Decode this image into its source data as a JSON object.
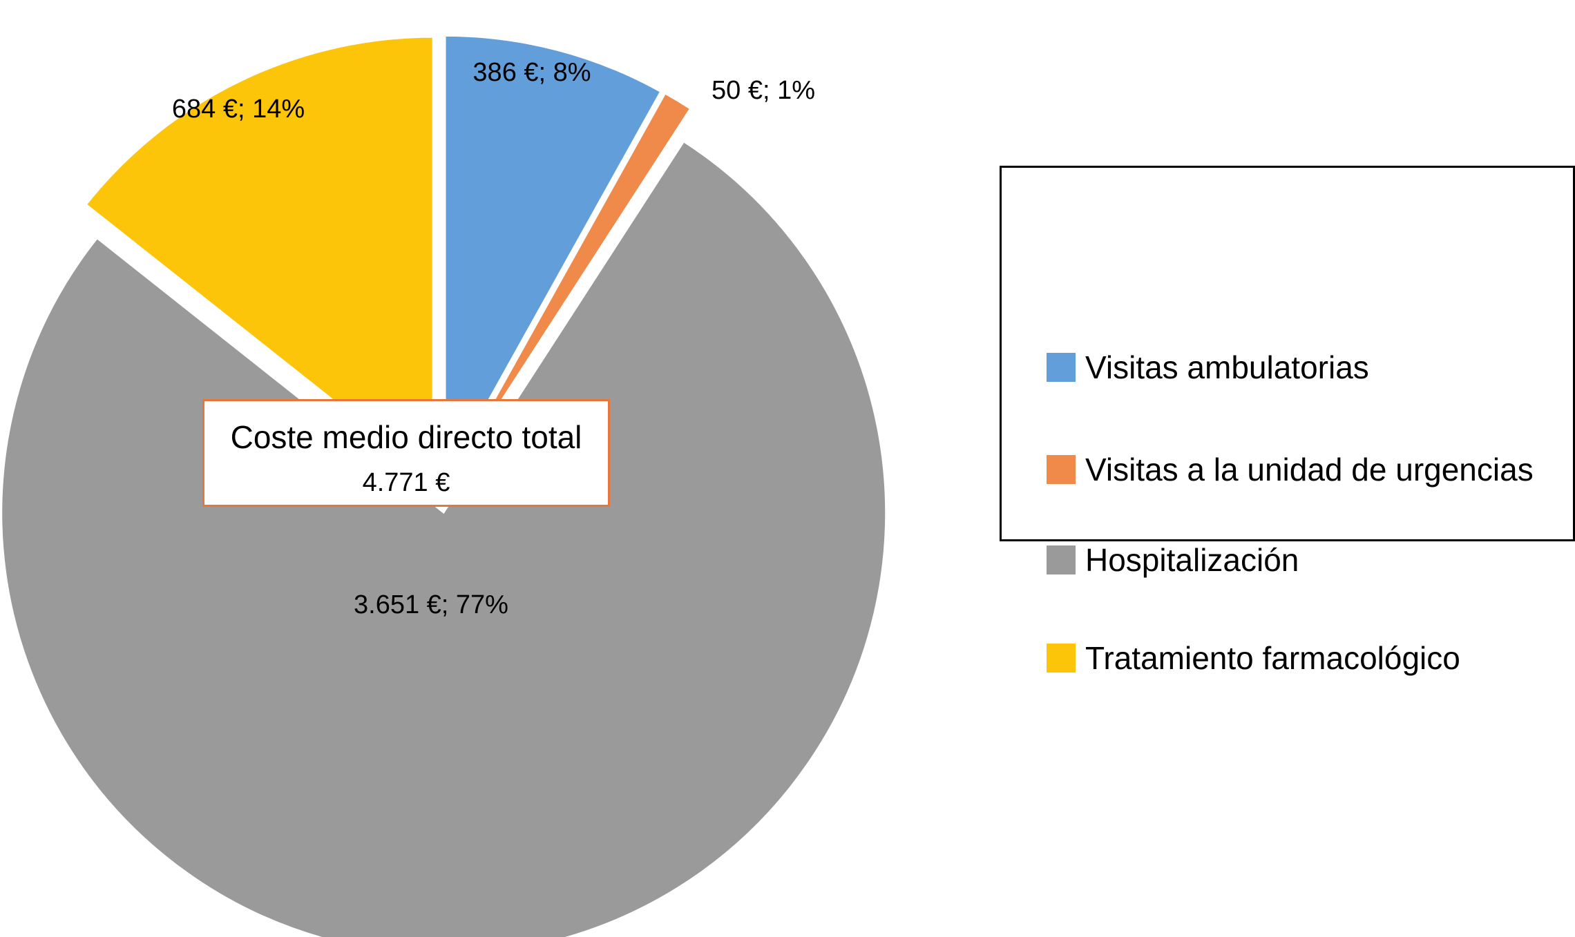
{
  "chart_data": {
    "type": "pie",
    "title": "",
    "slices": [
      {
        "name": "Visitas ambulatorias",
        "value": 386,
        "label": "386 €; 8%",
        "color": "#629fda"
      },
      {
        "name": "Visitas a la unidad de urgencias",
        "value": 50,
        "label": "50 €; 1%",
        "color": "#f08a4b"
      },
      {
        "name": "Hospitalización",
        "value": 3651,
        "label": "3.651 €; 77%",
        "color": "#9a9a9a"
      },
      {
        "name": "Tratamiento farmacológico",
        "value": 684,
        "label": "684 €; 14%",
        "color": "#fdc50a"
      }
    ],
    "exploded": true,
    "label_position": "on-slice",
    "legend_placement": "right",
    "total_box": {
      "title": "Coste medio directo total",
      "value": "4.771 €"
    }
  }
}
